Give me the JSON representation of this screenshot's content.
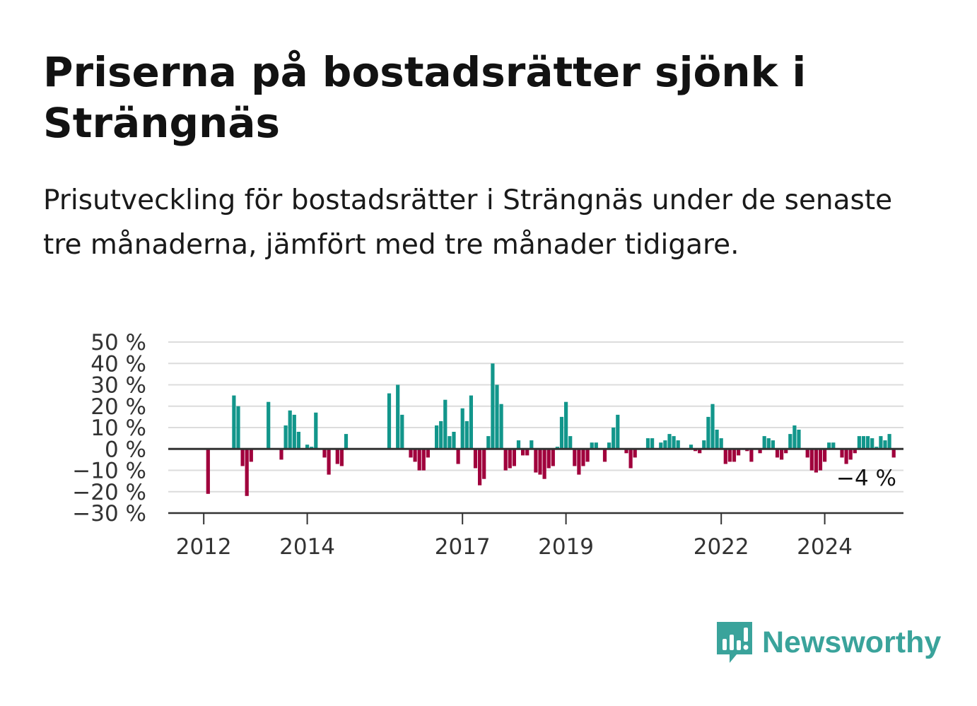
{
  "title": "Priserna på bostadsrätter sjönk i Strängnäs",
  "subtitle": "Prisutveckling för bostadsrätter i Strängnäs under de senaste tre månaderna, jämfört med tre månader tidigare.",
  "brand": {
    "name": "Newsworthy",
    "icon": "newsworthy-logo-icon",
    "color": "#3aa39b"
  },
  "colors": {
    "positive": "#12968b",
    "negative": "#a0003c",
    "grid": "#dcdcdc",
    "axis": "#333333"
  },
  "chart_data": {
    "type": "bar",
    "unit": "%",
    "ylim": [
      -30,
      50
    ],
    "yticks": [
      50,
      40,
      30,
      20,
      10,
      0,
      -10,
      -20,
      -30
    ],
    "ytick_labels": [
      "50 %",
      "40 %",
      "30 %",
      "20 %",
      "10 %",
      "0 %",
      "−10 %",
      "−20 %",
      "−30 %"
    ],
    "xticks": [
      2012,
      2014,
      2017,
      2019,
      2022,
      2024
    ],
    "x_start": "2011-01",
    "grid": true,
    "last_value_label": "−4 %",
    "values": [
      null,
      null,
      null,
      null,
      null,
      null,
      null,
      null,
      null,
      null,
      null,
      null,
      null,
      -21,
      null,
      null,
      null,
      null,
      null,
      25,
      20,
      -8,
      -22,
      -6,
      null,
      null,
      null,
      22,
      null,
      null,
      -5,
      11,
      18,
      16,
      8,
      null,
      2,
      1,
      17,
      null,
      -4,
      -12,
      null,
      -7,
      -8,
      7,
      null,
      null,
      null,
      null,
      null,
      null,
      null,
      null,
      null,
      26,
      null,
      30,
      16,
      null,
      -4,
      -6,
      -10,
      -10,
      -4,
      null,
      11,
      13,
      23,
      6,
      8,
      -7,
      19,
      13,
      25,
      -9,
      -17,
      -14,
      6,
      40,
      30,
      21,
      -10,
      -9,
      -8,
      4,
      -3,
      -3,
      4,
      -11,
      -12,
      -14,
      -9,
      -8,
      1,
      15,
      22,
      6,
      -8,
      -12,
      -8,
      -6,
      3,
      3,
      null,
      -6,
      3,
      10,
      16,
      null,
      -2,
      -9,
      -4,
      null,
      null,
      5,
      5,
      null,
      3,
      4,
      7,
      6,
      4,
      null,
      null,
      2,
      -1,
      -2,
      4,
      15,
      21,
      9,
      5,
      -7,
      -6,
      -6,
      -3,
      null,
      -1,
      -6,
      null,
      -2,
      6,
      5,
      4,
      -4,
      -5,
      -2,
      7,
      11,
      9,
      null,
      -4,
      -10,
      -11,
      -10,
      -6,
      3,
      3,
      null,
      -4,
      -7,
      -5,
      -2,
      6,
      6,
      6,
      5,
      1,
      6,
      4,
      7,
      -4
    ]
  }
}
